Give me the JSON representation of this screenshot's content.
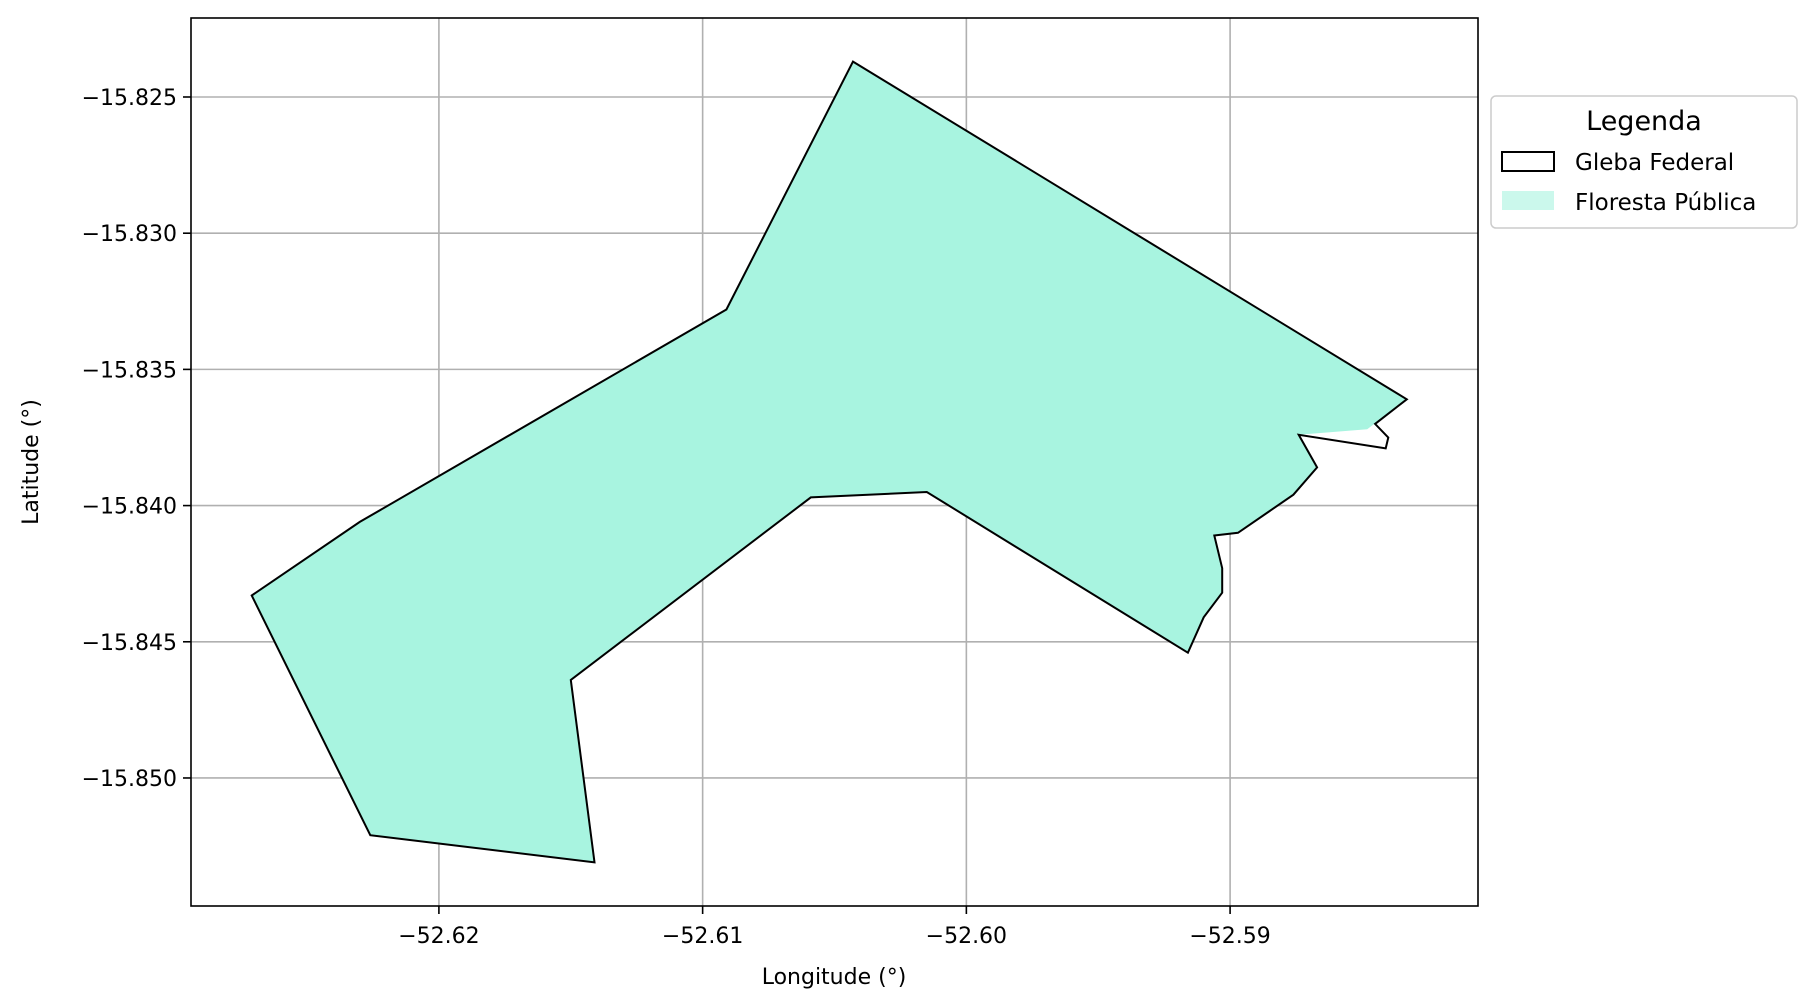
{
  "chart_data": {
    "type": "map",
    "xlabel": "Longitude (°)",
    "ylabel": "Latitude (°)",
    "xlim": [
      -52.6294,
      -52.5806
    ],
    "ylim": [
      -15.8547,
      -15.8221
    ],
    "x_ticks": [
      {
        "value": -52.62,
        "label": "−52.62"
      },
      {
        "value": -52.61,
        "label": "−52.61"
      },
      {
        "value": -52.6,
        "label": "−52.60"
      },
      {
        "value": -52.59,
        "label": "−52.59"
      }
    ],
    "y_ticks": [
      {
        "value": -15.825,
        "label": "−15.825"
      },
      {
        "value": -15.83,
        "label": "−15.830"
      },
      {
        "value": -15.835,
        "label": "−15.835"
      },
      {
        "value": -15.84,
        "label": "−15.840"
      },
      {
        "value": -15.845,
        "label": "−15.845"
      },
      {
        "value": -15.85,
        "label": "−15.850"
      }
    ],
    "grid": true,
    "legend": {
      "title": "Legenda",
      "position": "outside-upper-right",
      "entries": [
        {
          "label": "Gleba Federal",
          "style": "outline",
          "edge_color": "#000000"
        },
        {
          "label": "Floresta Pública",
          "style": "fill",
          "fill_color": "#a8f4e0"
        }
      ]
    },
    "layers": [
      {
        "name": "Floresta Pública",
        "fill_color": "#a8f4e0",
        "coordinates": [
          [
            -52.6043,
            -15.8237
          ],
          [
            -52.5833,
            -15.8361
          ],
          [
            -52.5848,
            -15.8372
          ],
          [
            -52.5874,
            -15.8374
          ],
          [
            -52.5867,
            -15.8386
          ],
          [
            -52.5876,
            -15.8396
          ],
          [
            -52.5897,
            -15.841
          ],
          [
            -52.5906,
            -15.8411
          ],
          [
            -52.5903,
            -15.8423
          ],
          [
            -52.5903,
            -15.8432
          ],
          [
            -52.591,
            -15.8441
          ],
          [
            -52.5916,
            -15.8454
          ],
          [
            -52.6015,
            -15.8395
          ],
          [
            -52.6059,
            -15.8397
          ],
          [
            -52.615,
            -15.8464
          ],
          [
            -52.6141,
            -15.8531
          ],
          [
            -52.6226,
            -15.8521
          ],
          [
            -52.6271,
            -15.8433
          ],
          [
            -52.623,
            -15.8406
          ],
          [
            -52.6091,
            -15.8328
          ]
        ]
      },
      {
        "name": "Gleba Federal",
        "edge_color": "#000000",
        "coordinates": [
          [
            -52.6043,
            -15.8237
          ],
          [
            -52.5833,
            -15.8361
          ],
          [
            -52.5845,
            -15.837
          ],
          [
            -52.584,
            -15.8375
          ],
          [
            -52.5841,
            -15.8379
          ],
          [
            -52.5874,
            -15.8374
          ],
          [
            -52.5867,
            -15.8386
          ],
          [
            -52.5876,
            -15.8396
          ],
          [
            -52.5897,
            -15.841
          ],
          [
            -52.5906,
            -15.8411
          ],
          [
            -52.5903,
            -15.8423
          ],
          [
            -52.5903,
            -15.8432
          ],
          [
            -52.591,
            -15.8441
          ],
          [
            -52.5916,
            -15.8454
          ],
          [
            -52.6015,
            -15.8395
          ],
          [
            -52.6059,
            -15.8397
          ],
          [
            -52.615,
            -15.8464
          ],
          [
            -52.6141,
            -15.8531
          ],
          [
            -52.6226,
            -15.8521
          ],
          [
            -52.6271,
            -15.8433
          ],
          [
            -52.623,
            -15.8406
          ],
          [
            -52.6091,
            -15.8328
          ]
        ]
      }
    ]
  }
}
